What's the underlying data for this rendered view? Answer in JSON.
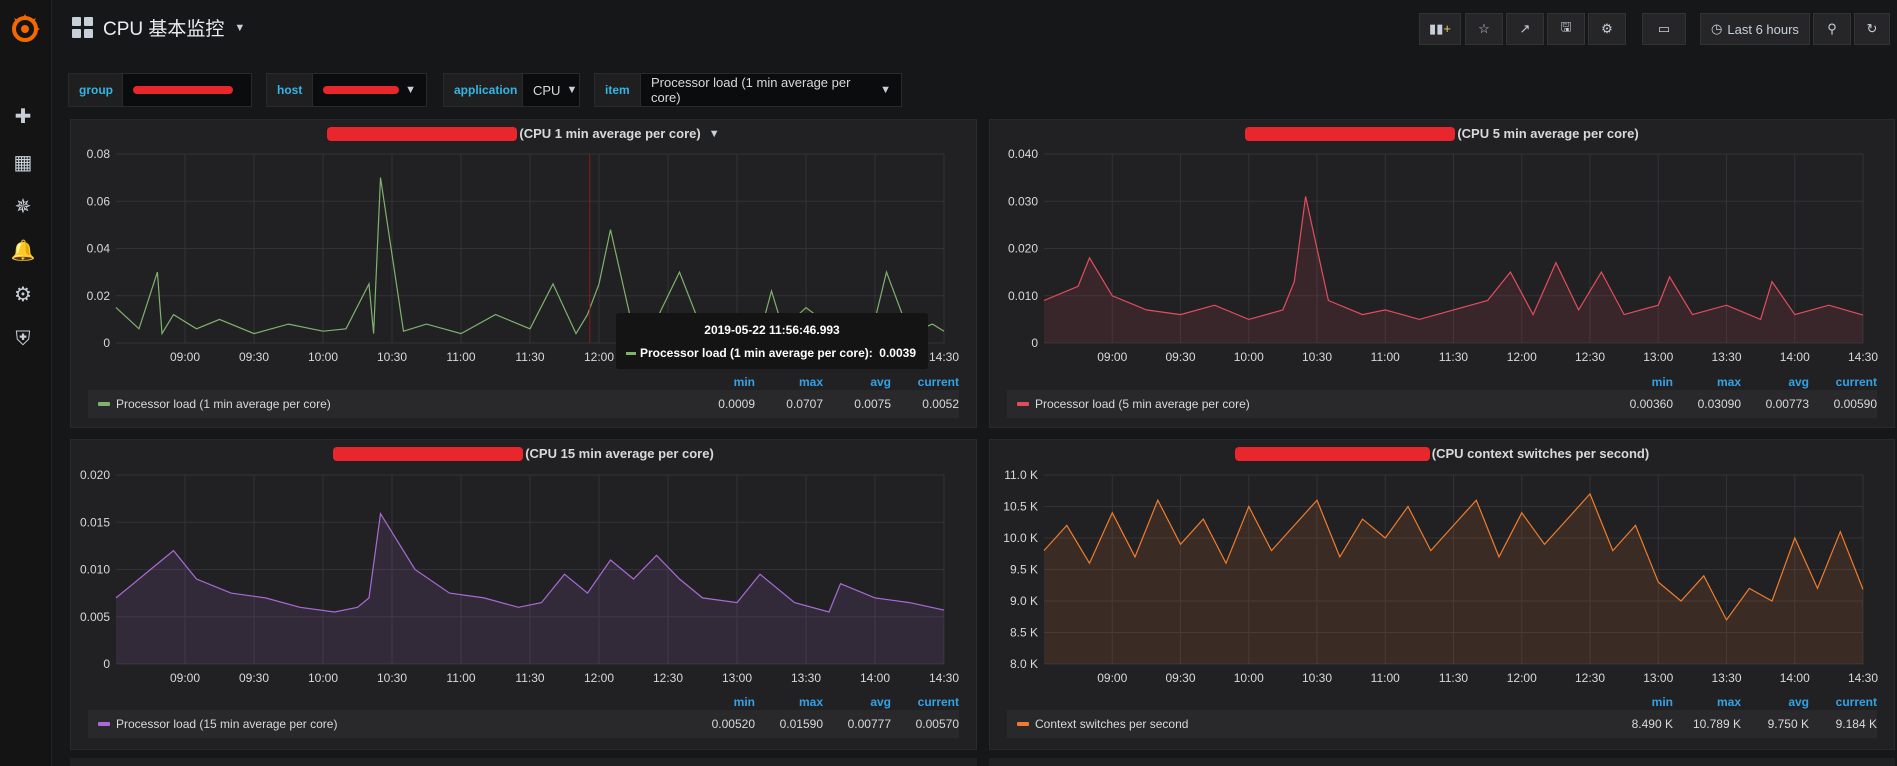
{
  "nav": {
    "icons": [
      "grafana-logo",
      "plus-icon",
      "dashboards-icon",
      "explore-icon",
      "alerting-icon",
      "configuration-icon",
      "shield-icon"
    ]
  },
  "header": {
    "title": "CPU 基本监控",
    "time_range": "Last 6 hours",
    "buttons": [
      "add-panel-icon",
      "star-icon",
      "share-icon",
      "save-icon",
      "settings-icon",
      "tv-icon",
      "clock-icon",
      "zoom-out-icon",
      "refresh-icon"
    ]
  },
  "variables": {
    "group_label": "group",
    "host_label": "host",
    "application_label": "application",
    "application_value": "CPU",
    "item_label": "item",
    "item_value": "Processor load (1 min average per core)"
  },
  "colors": {
    "green": "#7eb26d",
    "red": "#e24d5d",
    "purple": "#a96ad6",
    "orange": "#ef7c2c",
    "accent_blue": "#33a2e5",
    "redaction": "#e8262b"
  },
  "legend_headers": {
    "min": "min",
    "max": "max",
    "avg": "avg",
    "current": "current"
  },
  "panels": [
    {
      "title": "(CPU 1 min average per core)",
      "legend": {
        "name": "Processor load (1 min average per core)",
        "min": "0.0009",
        "max": "0.0707",
        "avg": "0.0075",
        "current": "0.0052"
      },
      "tooltip": {
        "time": "2019-05-22 11:56:46.993",
        "label": "Processor load (1 min average per core):",
        "value": "0.0039"
      }
    },
    {
      "title": "(CPU 5 min average per core)",
      "legend": {
        "name": "Processor load (5 min average per core)",
        "min": "0.00360",
        "max": "0.03090",
        "avg": "0.00773",
        "current": "0.00590"
      }
    },
    {
      "title": "(CPU 15 min average per core)",
      "legend": {
        "name": "Processor load (15 min average per core)",
        "min": "0.00520",
        "max": "0.01590",
        "avg": "0.00777",
        "current": "0.00570"
      }
    },
    {
      "title": "(CPU context switches per second)",
      "legend": {
        "name": "Context switches per second",
        "min": "8.490 K",
        "max": "10.789 K",
        "avg": "9.750 K",
        "current": "9.184 K"
      }
    }
  ],
  "chart_data": [
    {
      "type": "line",
      "title": "(CPU 1 min average per core)",
      "x_ticks": [
        "09:00",
        "09:30",
        "10:00",
        "10:30",
        "11:00",
        "11:30",
        "12:00",
        "12:30",
        "13:00",
        "13:30",
        "14:00",
        "14:30"
      ],
      "y_ticks": [
        "0",
        "0.02",
        "0.04",
        "0.06",
        "0.08"
      ],
      "ylim": [
        0,
        0.08
      ],
      "x_range": [
        "08:30",
        "14:30"
      ],
      "series": [
        {
          "name": "Processor load (1 min average per core)",
          "color": "#7eb26d",
          "x": [
            "08:30",
            "08:40",
            "08:48",
            "08:50",
            "08:55",
            "09:05",
            "09:15",
            "09:30",
            "09:45",
            "10:00",
            "10:10",
            "10:20",
            "10:22",
            "10:25",
            "10:35",
            "10:45",
            "11:00",
            "11:15",
            "11:30",
            "11:40",
            "11:50",
            "11:55",
            "12:00",
            "12:05",
            "12:15",
            "12:25",
            "12:35",
            "12:45",
            "13:00",
            "13:10",
            "13:15",
            "13:20",
            "13:30",
            "13:45",
            "14:00",
            "14:05",
            "14:15",
            "14:25",
            "14:30"
          ],
          "values": [
            0.015,
            0.006,
            0.03,
            0.004,
            0.012,
            0.006,
            0.01,
            0.004,
            0.008,
            0.005,
            0.006,
            0.025,
            0.004,
            0.07,
            0.005,
            0.008,
            0.004,
            0.012,
            0.006,
            0.025,
            0.004,
            0.012,
            0.025,
            0.048,
            0.005,
            0.01,
            0.03,
            0.005,
            0.012,
            0.004,
            0.022,
            0.006,
            0.015,
            0.004,
            0.01,
            0.03,
            0.004,
            0.008,
            0.005
          ]
        }
      ],
      "grid": true
    },
    {
      "type": "area",
      "title": "(CPU 5 min average per core)",
      "x_ticks": [
        "09:00",
        "09:30",
        "10:00",
        "10:30",
        "11:00",
        "11:30",
        "12:00",
        "12:30",
        "13:00",
        "13:30",
        "14:00",
        "14:30"
      ],
      "y_ticks": [
        "0",
        "0.010",
        "0.020",
        "0.030",
        "0.040"
      ],
      "ylim": [
        0,
        0.04
      ],
      "series": [
        {
          "name": "Processor load (5 min average per core)",
          "color": "#e24d5d",
          "x": [
            "08:30",
            "08:45",
            "08:50",
            "09:00",
            "09:15",
            "09:30",
            "09:45",
            "10:00",
            "10:15",
            "10:20",
            "10:25",
            "10:35",
            "10:50",
            "11:00",
            "11:15",
            "11:30",
            "11:45",
            "11:55",
            "12:05",
            "12:15",
            "12:25",
            "12:35",
            "12:45",
            "13:00",
            "13:05",
            "13:15",
            "13:30",
            "13:45",
            "13:50",
            "14:00",
            "14:15",
            "14:30"
          ],
          "values": [
            0.009,
            0.012,
            0.018,
            0.01,
            0.007,
            0.006,
            0.008,
            0.005,
            0.007,
            0.013,
            0.031,
            0.009,
            0.006,
            0.007,
            0.005,
            0.007,
            0.009,
            0.015,
            0.006,
            0.017,
            0.007,
            0.015,
            0.006,
            0.008,
            0.014,
            0.006,
            0.008,
            0.005,
            0.013,
            0.006,
            0.008,
            0.0059
          ]
        }
      ],
      "grid": true
    },
    {
      "type": "area",
      "title": "(CPU 15 min average per core)",
      "x_ticks": [
        "09:00",
        "09:30",
        "10:00",
        "10:30",
        "11:00",
        "11:30",
        "12:00",
        "12:30",
        "13:00",
        "13:30",
        "14:00",
        "14:30"
      ],
      "y_ticks": [
        "0",
        "0.005",
        "0.010",
        "0.015",
        "0.020"
      ],
      "ylim": [
        0,
        0.02
      ],
      "series": [
        {
          "name": "Processor load (15 min average per core)",
          "color": "#a96ad6",
          "x": [
            "08:30",
            "08:45",
            "08:55",
            "09:05",
            "09:20",
            "09:35",
            "09:50",
            "10:05",
            "10:15",
            "10:20",
            "10:25",
            "10:40",
            "10:55",
            "11:10",
            "11:25",
            "11:35",
            "11:45",
            "11:55",
            "12:05",
            "12:15",
            "12:25",
            "12:35",
            "12:45",
            "13:00",
            "13:10",
            "13:25",
            "13:40",
            "13:45",
            "14:00",
            "14:15",
            "14:30"
          ],
          "values": [
            0.007,
            0.01,
            0.012,
            0.009,
            0.0075,
            0.007,
            0.006,
            0.0055,
            0.006,
            0.007,
            0.0159,
            0.01,
            0.0075,
            0.007,
            0.006,
            0.0065,
            0.0095,
            0.0075,
            0.011,
            0.009,
            0.0115,
            0.009,
            0.007,
            0.0065,
            0.0095,
            0.0065,
            0.0055,
            0.0085,
            0.007,
            0.0065,
            0.0057
          ]
        }
      ],
      "grid": true
    },
    {
      "type": "area",
      "title": "(CPU context switches per second)",
      "x_ticks": [
        "09:00",
        "09:30",
        "10:00",
        "10:30",
        "11:00",
        "11:30",
        "12:00",
        "12:30",
        "13:00",
        "13:30",
        "14:00",
        "14:30"
      ],
      "y_ticks": [
        "8.0 K",
        "8.5 K",
        "9.0 K",
        "9.5 K",
        "10.0 K",
        "10.5 K",
        "11.0 K"
      ],
      "ylim": [
        8000,
        11000
      ],
      "series": [
        {
          "name": "Context switches per second",
          "color": "#ef7c2c",
          "x": [
            "08:30",
            "08:40",
            "08:50",
            "09:00",
            "09:10",
            "09:20",
            "09:30",
            "09:40",
            "09:50",
            "10:00",
            "10:10",
            "10:20",
            "10:30",
            "10:40",
            "10:50",
            "11:00",
            "11:10",
            "11:20",
            "11:30",
            "11:40",
            "11:50",
            "12:00",
            "12:10",
            "12:20",
            "12:30",
            "12:40",
            "12:50",
            "13:00",
            "13:10",
            "13:20",
            "13:30",
            "13:40",
            "13:50",
            "14:00",
            "14:10",
            "14:20",
            "14:30"
          ],
          "values": [
            9800,
            10200,
            9600,
            10400,
            9700,
            10600,
            9900,
            10300,
            9600,
            10500,
            9800,
            10200,
            10600,
            9700,
            10300,
            10000,
            10500,
            9800,
            10200,
            10600,
            9700,
            10400,
            9900,
            10300,
            10700,
            9800,
            10200,
            9300,
            9000,
            9400,
            8700,
            9200,
            9000,
            10000,
            9200,
            10100,
            9184
          ]
        }
      ],
      "grid": true
    }
  ]
}
